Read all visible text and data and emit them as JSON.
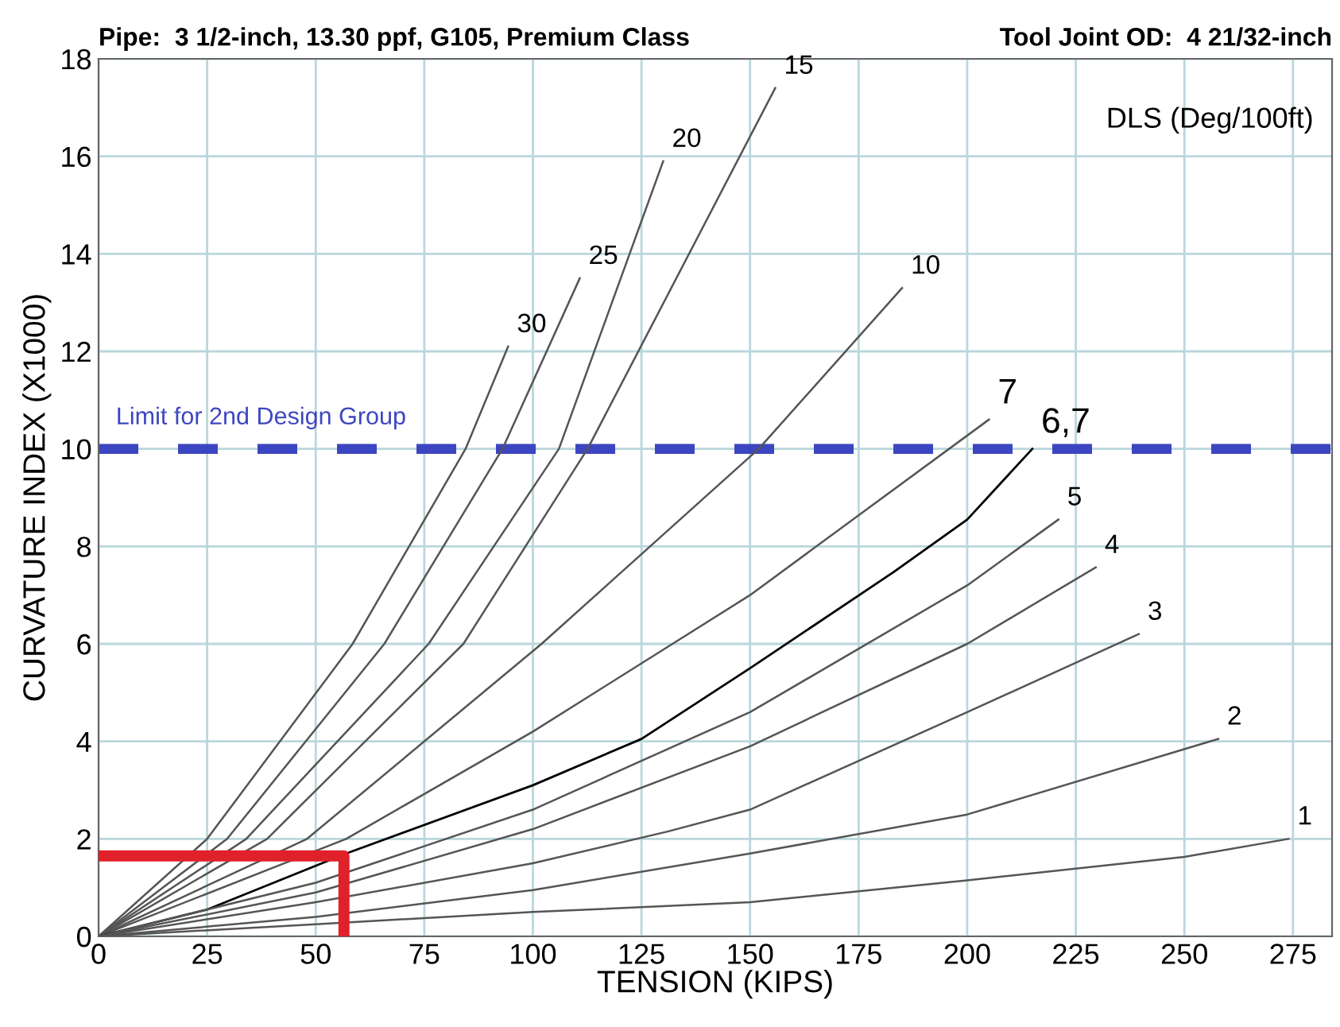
{
  "chart_data": {
    "type": "line",
    "title": "Pipe:  3 1/2-inch, 13.30 ppf, G105, Premium Class",
    "subtitle": "Tool Joint OD:  4 21/32-inch",
    "xlabel": "TENSION (KIPS)",
    "ylabel": "CURVATURE INDEX (X1000)",
    "legend_title": "DLS (Deg/100ft)",
    "xlim": [
      0,
      284
    ],
    "ylim": [
      0,
      18
    ],
    "xticks": [
      0,
      25,
      50,
      75,
      100,
      125,
      150,
      175,
      200,
      225,
      250,
      275
    ],
    "yticks": [
      0,
      2,
      4,
      6,
      8,
      10,
      12,
      14,
      16,
      18
    ],
    "grid": true,
    "marker": "none",
    "line_style": "solid",
    "series": [
      {
        "name": "30",
        "color": "#555555",
        "x": [
          0,
          25,
          58.5,
          84.5,
          94.3
        ],
        "values": [
          0,
          2,
          6,
          10,
          12.1
        ]
      },
      {
        "name": "25",
        "color": "#555555",
        "x": [
          0,
          29.6,
          65.8,
          93,
          110.8
        ],
        "values": [
          0,
          2,
          6,
          10,
          13.5
        ]
      },
      {
        "name": "20",
        "color": "#555555",
        "x": [
          0,
          34,
          76,
          106,
          130
        ],
        "values": [
          0,
          2,
          6,
          10,
          15.9
        ]
      },
      {
        "name": "15",
        "color": "#555555",
        "x": [
          0,
          38.8,
          84,
          112.6,
          155.8
        ],
        "values": [
          0,
          2,
          6,
          10,
          17.4
        ]
      },
      {
        "name": "10",
        "color": "#555555",
        "x": [
          0,
          48,
          102,
          152,
          185
        ],
        "values": [
          0,
          2,
          6,
          10,
          13.3
        ]
      },
      {
        "name": "7",
        "color": "#555555",
        "x": [
          0,
          57,
          100,
          150,
          205
        ],
        "values": [
          0,
          2,
          4.2,
          7,
          10.6
        ]
      },
      {
        "name": "6,7",
        "color": "#000000",
        "x": [
          0,
          25,
          57,
          100,
          125,
          150,
          183,
          200,
          215
        ],
        "values": [
          0,
          0.55,
          1.7,
          3.1,
          4.05,
          5.5,
          7.47,
          8.55,
          10
        ]
      },
      {
        "name": "5",
        "color": "#555555",
        "x": [
          0,
          50,
          100,
          150,
          200,
          221
        ],
        "values": [
          0,
          1.1,
          2.6,
          4.6,
          7.2,
          8.55
        ]
      },
      {
        "name": "4",
        "color": "#555555",
        "x": [
          0,
          50,
          100,
          150,
          200,
          229.6
        ],
        "values": [
          0,
          0.9,
          2.2,
          3.9,
          6,
          7.57
        ]
      },
      {
        "name": "3",
        "color": "#555555",
        "x": [
          0,
          50,
          100,
          131,
          150,
          200,
          239.5
        ],
        "values": [
          0,
          0.7,
          1.5,
          2.15,
          2.6,
          4.6,
          6.2
        ]
      },
      {
        "name": "2",
        "color": "#555555",
        "x": [
          0,
          50,
          100,
          150,
          200,
          257.8
        ],
        "values": [
          0,
          0.4,
          0.95,
          1.7,
          2.5,
          4.05
        ]
      },
      {
        "name": "1",
        "color": "#555555",
        "x": [
          0,
          50,
          100,
          150,
          200,
          250,
          274
        ],
        "values": [
          0,
          0.25,
          0.5,
          0.7,
          1.15,
          1.63,
          2
        ]
      },
      {
        "color": "#e0202a",
        "x": [
          0,
          56.5,
          56.5
        ],
        "values": [
          1.65,
          1.65,
          0
        ]
      }
    ],
    "ref_lines": [
      {
        "axis": "y",
        "value": 10,
        "label": "Limit for 2nd Design Group",
        "color": "#3c46c0",
        "line_style": "dashed"
      }
    ]
  }
}
